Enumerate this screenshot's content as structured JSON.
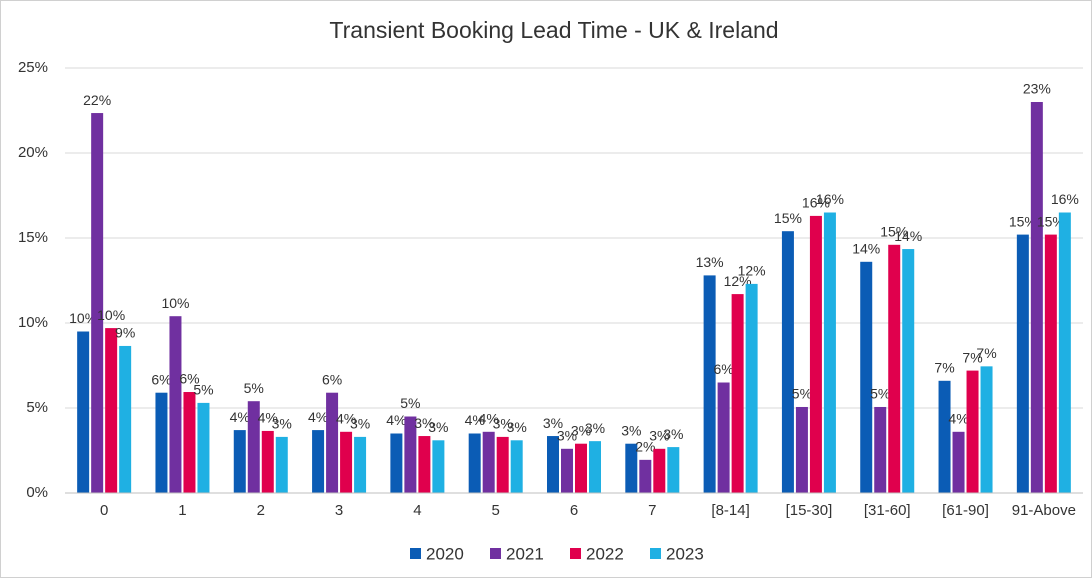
{
  "chart_data": {
    "type": "bar",
    "title": "Transient Booking Lead Time - UK & Ireland",
    "categories": [
      "0",
      "1",
      "2",
      "3",
      "4",
      "5",
      "6",
      "7",
      "[8-14]",
      "[15-30]",
      "[31-60]",
      "[61-90]",
      "91-Above"
    ],
    "series": [
      {
        "name": "2020",
        "color": "#0b5cb5",
        "values": [
          9.5,
          5.9,
          3.7,
          3.7,
          3.5,
          3.5,
          3.35,
          2.9,
          12.8,
          15.4,
          13.6,
          6.6,
          15.2
        ],
        "value_labels": [
          "10%",
          "6%",
          "4%",
          "4%",
          "4%",
          "4%",
          "3%",
          "3%",
          "13%",
          "15%",
          "14%",
          "7%",
          "15%"
        ]
      },
      {
        "name": "2021",
        "color": "#7030a0",
        "values": [
          22.35,
          10.4,
          5.4,
          5.9,
          4.5,
          3.6,
          2.6,
          1.95,
          6.5,
          5.06,
          5.06,
          3.6,
          23.0
        ],
        "value_labels": [
          "22%",
          "10%",
          "5%",
          "6%",
          "5%",
          "4%",
          "3%",
          "2%",
          "6%",
          "5%",
          "5%",
          "4%",
          "23%"
        ]
      },
      {
        "name": "2022",
        "color": "#e0004d",
        "values": [
          9.7,
          5.94,
          3.65,
          3.6,
          3.35,
          3.3,
          2.9,
          2.6,
          11.7,
          16.3,
          14.6,
          7.2,
          15.2
        ],
        "value_labels": [
          "10%",
          "6%",
          "4%",
          "4%",
          "3%",
          "3%",
          "3%",
          "3%",
          "12%",
          "16%",
          "15%",
          "7%",
          "15%"
        ]
      },
      {
        "name": "2023",
        "color": "#1fb0e3",
        "values": [
          8.65,
          5.3,
          3.3,
          3.3,
          3.1,
          3.1,
          3.05,
          2.7,
          12.3,
          16.5,
          14.35,
          7.45,
          16.5
        ],
        "value_labels": [
          "9%",
          "5%",
          "3%",
          "3%",
          "3%",
          "3%",
          "3%",
          "3%",
          "12%",
          "16%",
          "14%",
          "7%",
          "16%"
        ]
      }
    ],
    "ylim": [
      0,
      25
    ],
    "yticks": [
      {
        "value": 0,
        "label": "0%"
      },
      {
        "value": 5,
        "label": "5%"
      },
      {
        "value": 10,
        "label": "10%"
      },
      {
        "value": 15,
        "label": "15%"
      },
      {
        "value": 20,
        "label": "20%"
      },
      {
        "value": 25,
        "label": "25%"
      }
    ],
    "grid": true,
    "legend": "bottom"
  }
}
